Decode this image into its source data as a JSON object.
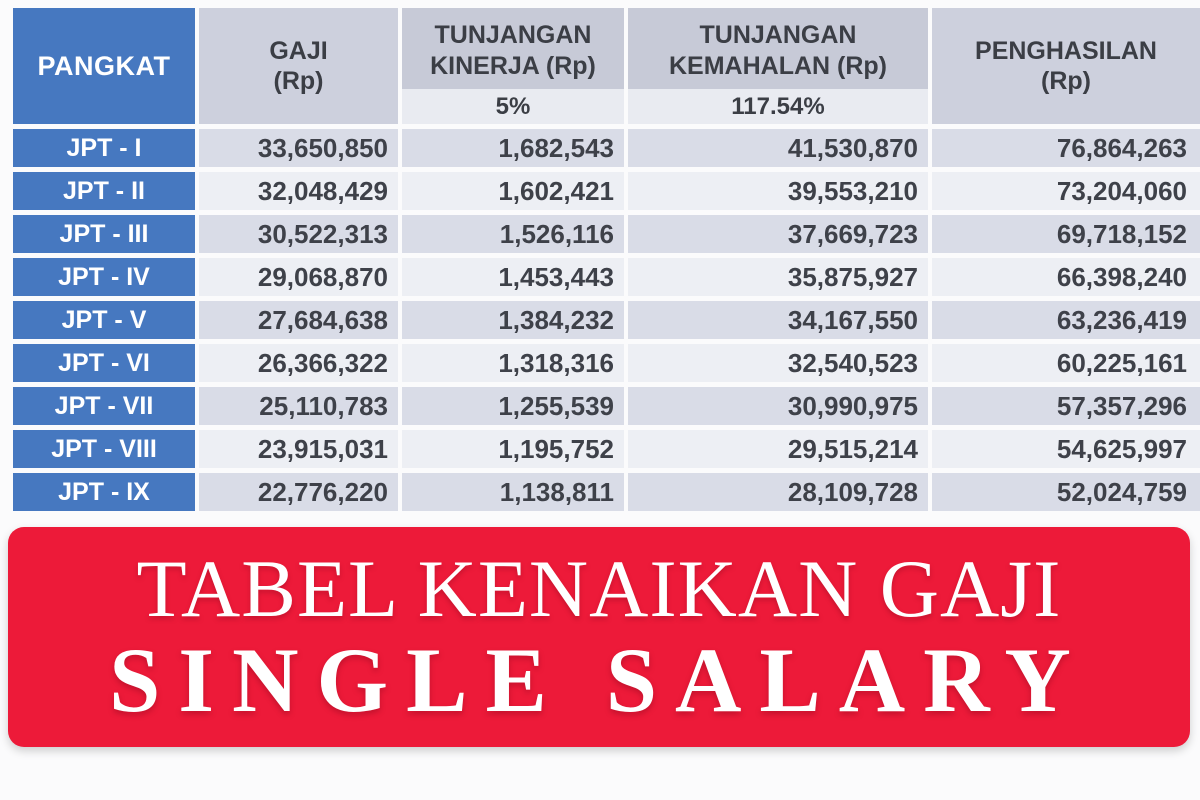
{
  "colors": {
    "accent_blue": "#4678c0",
    "row_odd_bg": "#d9dce7",
    "row_even_bg": "#edeff4",
    "header_full_bg": "#cdd0dd",
    "header_main_bg": "#c7cad7",
    "header_sub_bg": "#e9ebf1",
    "banner_red": "#ed1a39",
    "text_dark": "#3b3e45",
    "text_white": "#ffffff"
  },
  "table": {
    "header": {
      "pangkat": "PANGKAT",
      "gaji": {
        "line1": "GAJI",
        "line2": "(Rp)"
      },
      "kinerja": {
        "line1": "TUNJANGAN",
        "line2": "KINERJA (Rp)",
        "pct": "5%"
      },
      "kemahalan": {
        "line1": "TUNJANGAN",
        "line2": "KEMAHALAN (Rp)",
        "pct": "117.54%"
      },
      "penghasilan": {
        "line1": "PENGHASILAN",
        "line2": "(Rp)"
      }
    },
    "rows": [
      {
        "pangkat": "JPT - I",
        "gaji": "33,650,850",
        "kinerja": "1,682,543",
        "kemahalan": "41,530,870",
        "penghasilan": "76,864,263"
      },
      {
        "pangkat": "JPT - II",
        "gaji": "32,048,429",
        "kinerja": "1,602,421",
        "kemahalan": "39,553,210",
        "penghasilan": "73,204,060"
      },
      {
        "pangkat": "JPT - III",
        "gaji": "30,522,313",
        "kinerja": "1,526,116",
        "kemahalan": "37,669,723",
        "penghasilan": "69,718,152"
      },
      {
        "pangkat": "JPT - IV",
        "gaji": "29,068,870",
        "kinerja": "1,453,443",
        "kemahalan": "35,875,927",
        "penghasilan": "66,398,240"
      },
      {
        "pangkat": "JPT - V",
        "gaji": "27,684,638",
        "kinerja": "1,384,232",
        "kemahalan": "34,167,550",
        "penghasilan": "63,236,419"
      },
      {
        "pangkat": "JPT - VI",
        "gaji": "26,366,322",
        "kinerja": "1,318,316",
        "kemahalan": "32,540,523",
        "penghasilan": "60,225,161"
      },
      {
        "pangkat": "JPT - VII",
        "gaji": "25,110,783",
        "kinerja": "1,255,539",
        "kemahalan": "30,990,975",
        "penghasilan": "57,357,296"
      },
      {
        "pangkat": "JPT - VIII",
        "gaji": "23,915,031",
        "kinerja": "1,195,752",
        "kemahalan": "29,515,214",
        "penghasilan": "54,625,997"
      },
      {
        "pangkat": "JPT - IX",
        "gaji": "22,776,220",
        "kinerja": "1,138,811",
        "kemahalan": "28,109,728",
        "penghasilan": "52,024,759"
      }
    ]
  },
  "banner": {
    "title": "TABEL KENAIKAN GAJI",
    "subtitle": "SINGLE SALARY"
  }
}
